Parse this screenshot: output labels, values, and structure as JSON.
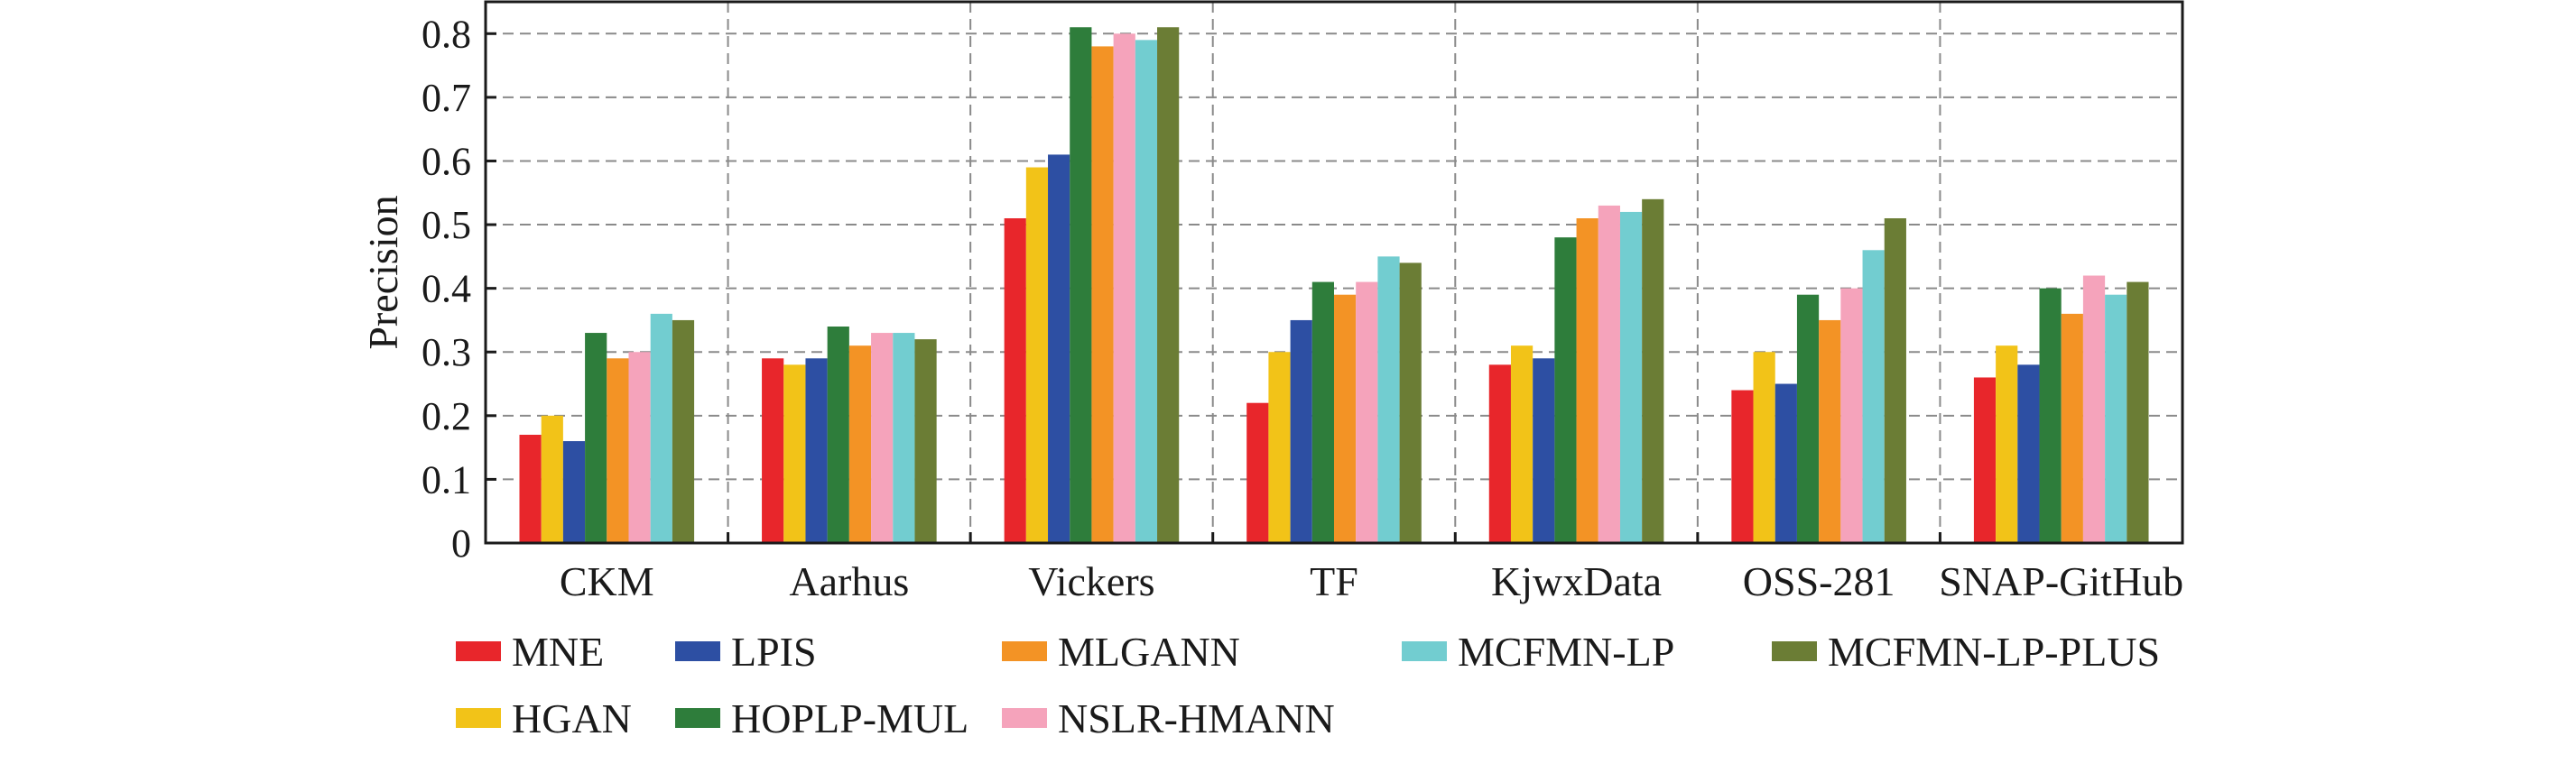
{
  "chart_data": {
    "type": "bar",
    "title": "",
    "xlabel": "",
    "ylabel": "Precision",
    "ylim": [
      0,
      0.85
    ],
    "yticks": [
      "0",
      "0.1",
      "0.2",
      "0.3",
      "0.4",
      "0.5",
      "0.6",
      "0.7",
      "0.8"
    ],
    "grid": true,
    "legend_position": "bottom",
    "categories": [
      "CKM",
      "Aarhus",
      "Vickers",
      "TF",
      "KjwxData",
      "OSS-281",
      "SNAP-GitHub"
    ],
    "series": [
      {
        "name": "MNE",
        "color": "#e8262b",
        "values": [
          0.17,
          0.29,
          0.51,
          0.22,
          0.28,
          0.24,
          0.26
        ]
      },
      {
        "name": "HGAN",
        "color": "#f2c318",
        "values": [
          0.2,
          0.28,
          0.59,
          0.3,
          0.31,
          0.3,
          0.31
        ]
      },
      {
        "name": "LPIS",
        "color": "#2d4fa3",
        "values": [
          0.16,
          0.29,
          0.61,
          0.35,
          0.29,
          0.25,
          0.28
        ]
      },
      {
        "name": "HOPLP-MUL",
        "color": "#2e7d3b",
        "values": [
          0.33,
          0.34,
          0.81,
          0.41,
          0.48,
          0.39,
          0.4
        ]
      },
      {
        "name": "MLGANN",
        "color": "#f39325",
        "values": [
          0.29,
          0.31,
          0.78,
          0.39,
          0.51,
          0.35,
          0.36
        ]
      },
      {
        "name": "NSLR-HMANN",
        "color": "#f5a3bb",
        "values": [
          0.3,
          0.33,
          0.8,
          0.41,
          0.53,
          0.4,
          0.42
        ]
      },
      {
        "name": "MCFMN-LP",
        "color": "#72cdd0",
        "values": [
          0.36,
          0.33,
          0.79,
          0.45,
          0.52,
          0.46,
          0.39
        ]
      },
      {
        "name": "MCFMN-LP-PLUS",
        "color": "#6b7d35",
        "values": [
          0.35,
          0.32,
          0.81,
          0.44,
          0.54,
          0.51,
          0.41
        ]
      }
    ],
    "legend_order": [
      "MNE",
      "LPIS",
      "MLGANN",
      "MCFMN-LP",
      "MCFMN-LP-PLUS",
      "HGAN",
      "HOPLP-MUL",
      "NSLR-HMANN"
    ]
  }
}
